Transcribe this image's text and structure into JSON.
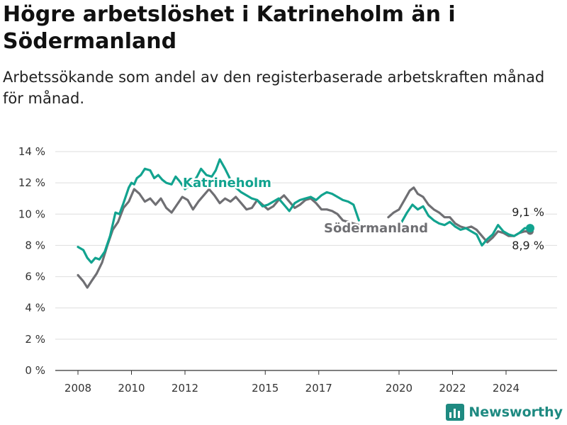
{
  "title": "Högre arbetslöshet i Katrineholm än i Södermanland",
  "subtitle": "Arbetssökande som andel av den registerbaserade arbetskraften månad för månad.",
  "brand": "Newsworthy",
  "colors": {
    "katrineholm": "#12a38f",
    "sodermanland": "#6f6f73",
    "brand": "#1e8a81"
  },
  "chart_data": {
    "type": "line",
    "title": "Högre arbetslöshet i Katrineholm än i Södermanland",
    "ylabel": "",
    "ylim": [
      0,
      14
    ],
    "y_ticks": [
      0,
      2,
      4,
      6,
      8,
      10,
      12,
      14
    ],
    "y_tick_labels": [
      "0 %",
      "2 %",
      "4 %",
      "6 %",
      "8 %",
      "10 %",
      "12 %",
      "14 %"
    ],
    "x_ticks": [
      2008,
      2010,
      2012,
      2015,
      2017,
      2020,
      2022,
      2024
    ],
    "x_tick_labels": [
      "2008",
      "2010",
      "2012",
      "2015",
      "2017",
      "2020",
      "2022",
      "2024"
    ],
    "xlim": [
      2007.1,
      2025.6
    ],
    "grid": true,
    "legend": "inline labels",
    "series": [
      {
        "name": "Katrineholm",
        "label_text": "Katrineholm",
        "end_label": "9,1 %",
        "x": [
          2008.0,
          2008.2,
          2008.35,
          2008.5,
          2008.65,
          2008.8,
          2009.0,
          2009.2,
          2009.4,
          2009.55,
          2009.7,
          2009.9,
          2010.0,
          2010.1,
          2010.2,
          2010.35,
          2010.5,
          2010.7,
          2010.85,
          2011.0,
          2011.15,
          2011.3,
          2011.5,
          2011.65,
          2011.8,
          2012.0,
          2012.15,
          2012.3,
          2012.45,
          2012.6,
          2012.8,
          2013.0,
          2013.15,
          2013.3,
          2013.5,
          2013.7,
          2013.9,
          2014.1,
          2014.3,
          2014.5,
          2014.7,
          2014.9,
          2015.1,
          2015.3,
          2015.5,
          2015.7,
          2015.9,
          2016.1,
          2016.3,
          2016.5,
          2016.7,
          2016.9,
          2017.1,
          2017.3,
          2017.5,
          2017.7,
          2017.9,
          2018.1,
          2018.3,
          2018.5,
          2020.1,
          2020.3,
          2020.5,
          2020.7,
          2020.9,
          2021.1,
          2021.3,
          2021.5,
          2021.7,
          2021.9,
          2022.1,
          2022.3,
          2022.5,
          2022.7,
          2022.9,
          2023.1,
          2023.3,
          2023.5,
          2023.7,
          2023.9,
          2024.1,
          2024.3,
          2024.5,
          2024.7,
          2024.9
        ],
        "values": [
          7.9,
          7.7,
          7.2,
          6.9,
          7.2,
          7.1,
          7.6,
          8.6,
          10.1,
          10.0,
          10.7,
          11.7,
          12.0,
          11.9,
          12.3,
          12.5,
          12.9,
          12.8,
          12.3,
          12.5,
          12.2,
          12.0,
          11.9,
          12.4,
          12.1,
          11.6,
          11.8,
          12.0,
          12.4,
          12.9,
          12.5,
          12.4,
          12.8,
          13.5,
          12.9,
          12.2,
          11.7,
          11.4,
          11.2,
          11.0,
          10.9,
          10.5,
          10.6,
          10.8,
          11.0,
          10.6,
          10.2,
          10.7,
          10.9,
          11.0,
          11.1,
          10.9,
          11.2,
          11.4,
          11.3,
          11.1,
          10.9,
          10.8,
          10.6,
          9.6,
          9.5,
          10.1,
          10.6,
          10.3,
          10.5,
          9.9,
          9.6,
          9.4,
          9.3,
          9.5,
          9.2,
          9.0,
          9.1,
          8.9,
          8.7,
          8.0,
          8.4,
          8.7,
          9.3,
          8.9,
          8.7,
          8.6,
          8.8,
          9.1,
          9.1
        ]
      },
      {
        "name": "Södermanland",
        "label_text": "Södermanland",
        "end_label": "8,9 %",
        "x": [
          2008.0,
          2008.2,
          2008.35,
          2008.5,
          2008.7,
          2008.9,
          2009.1,
          2009.3,
          2009.5,
          2009.7,
          2009.9,
          2010.1,
          2010.3,
          2010.5,
          2010.7,
          2010.9,
          2011.1,
          2011.3,
          2011.5,
          2011.7,
          2011.9,
          2012.1,
          2012.3,
          2012.5,
          2012.7,
          2012.9,
          2013.1,
          2013.3,
          2013.5,
          2013.7,
          2013.9,
          2014.1,
          2014.3,
          2014.5,
          2014.7,
          2014.9,
          2015.1,
          2015.3,
          2015.5,
          2015.7,
          2015.9,
          2016.1,
          2016.3,
          2016.5,
          2016.7,
          2016.9,
          2017.1,
          2017.3,
          2017.5,
          2017.7,
          2017.9,
          2018.1,
          2018.3,
          2018.5,
          2019.6,
          2019.8,
          2020.0,
          2020.2,
          2020.4,
          2020.55,
          2020.7,
          2020.9,
          2021.1,
          2021.3,
          2021.5,
          2021.7,
          2021.9,
          2022.1,
          2022.3,
          2022.5,
          2022.7,
          2022.9,
          2023.1,
          2023.3,
          2023.5,
          2023.7,
          2023.9,
          2024.1,
          2024.3,
          2024.5,
          2024.7,
          2024.9
        ],
        "values": [
          6.1,
          5.7,
          5.3,
          5.7,
          6.2,
          6.9,
          8.0,
          9.0,
          9.5,
          10.4,
          10.8,
          11.6,
          11.3,
          10.8,
          11.0,
          10.6,
          11.0,
          10.4,
          10.1,
          10.6,
          11.1,
          10.9,
          10.3,
          10.8,
          11.2,
          11.6,
          11.2,
          10.7,
          11.0,
          10.8,
          11.1,
          10.7,
          10.3,
          10.4,
          10.9,
          10.6,
          10.3,
          10.5,
          10.9,
          11.2,
          10.8,
          10.4,
          10.6,
          10.9,
          11.0,
          10.7,
          10.3,
          10.3,
          10.2,
          10.0,
          9.6,
          9.5,
          9.4,
          9.3,
          9.8,
          10.1,
          10.3,
          10.9,
          11.5,
          11.7,
          11.3,
          11.1,
          10.6,
          10.3,
          10.1,
          9.8,
          9.8,
          9.4,
          9.2,
          9.1,
          9.2,
          9.0,
          8.6,
          8.2,
          8.5,
          8.9,
          8.8,
          8.6,
          8.6,
          8.8,
          8.9,
          8.9
        ]
      }
    ]
  }
}
